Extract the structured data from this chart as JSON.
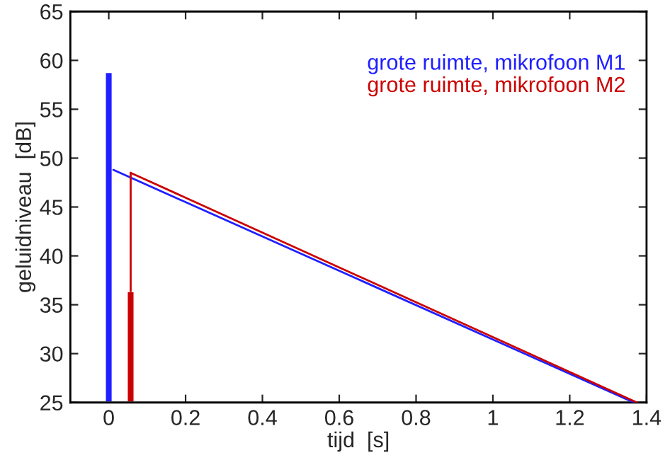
{
  "chart_data": {
    "type": "line",
    "xlabel": "tijd  [s]",
    "ylabel": "geluidniveau  [dB]",
    "xlim": [
      -0.1,
      1.4
    ],
    "xticks": [
      0,
      0.2,
      0.4,
      0.6,
      0.8,
      1,
      1.2,
      1.4
    ],
    "ylim": [
      25,
      65
    ],
    "yticks": [
      25,
      30,
      35,
      40,
      45,
      50,
      55,
      60,
      65
    ],
    "grid": false,
    "legend": "top right",
    "series": [
      {
        "type": "bar",
        "color": "#1f1fff",
        "x": [
          0
        ],
        "values": [
          58.8
        ]
      },
      {
        "type": "bar",
        "color": "#cc0000",
        "x": [
          0.057
        ],
        "values": [
          36.4
        ]
      },
      {
        "name": "grote ruimte, mikrofoon M1",
        "color": "#1f1fff",
        "x": [
          0.012,
          1.367
        ],
        "values": [
          48.8,
          25
        ]
      },
      {
        "name": "grote ruimte, mikrofoon M2",
        "color": "#cc0000",
        "x": [
          0.057,
          1.375
        ],
        "values": [
          48.5,
          25
        ]
      },
      {
        "color": "#cc0000",
        "x": [
          0.057,
          0.057
        ],
        "values": [
          36.4,
          48.5
        ]
      }
    ]
  }
}
